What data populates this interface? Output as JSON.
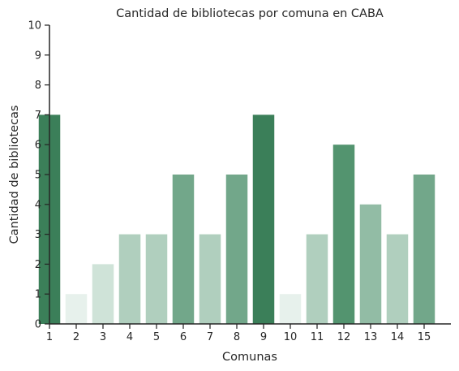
{
  "chart_data": {
    "type": "bar",
    "title": "Cantidad de bibliotecas por comuna en CABA",
    "xlabel": "Comunas",
    "ylabel": "Cantidad de bibliotecas",
    "categories": [
      "1",
      "2",
      "3",
      "4",
      "5",
      "6",
      "7",
      "8",
      "9",
      "10",
      "11",
      "12",
      "13",
      "14",
      "15"
    ],
    "values": [
      7,
      1,
      2,
      3,
      3,
      5,
      3,
      5,
      7,
      1,
      3,
      6,
      4,
      3,
      5
    ],
    "ylim": [
      0,
      10
    ],
    "yticks": [
      "0",
      "1",
      "2",
      "3",
      "4",
      "5",
      "6",
      "7",
      "8",
      "9",
      "10"
    ],
    "grid": false,
    "colors": [
      "#3b7f59",
      "#e7f1ec",
      "#cfe3d8",
      "#b0cfbe",
      "#b0cfbe",
      "#72a78a",
      "#b0cfbe",
      "#72a78a",
      "#3b7f59",
      "#e7f1ec",
      "#b0cfbe",
      "#53946f",
      "#92bca5",
      "#b0cfbe",
      "#72a78a"
    ]
  }
}
